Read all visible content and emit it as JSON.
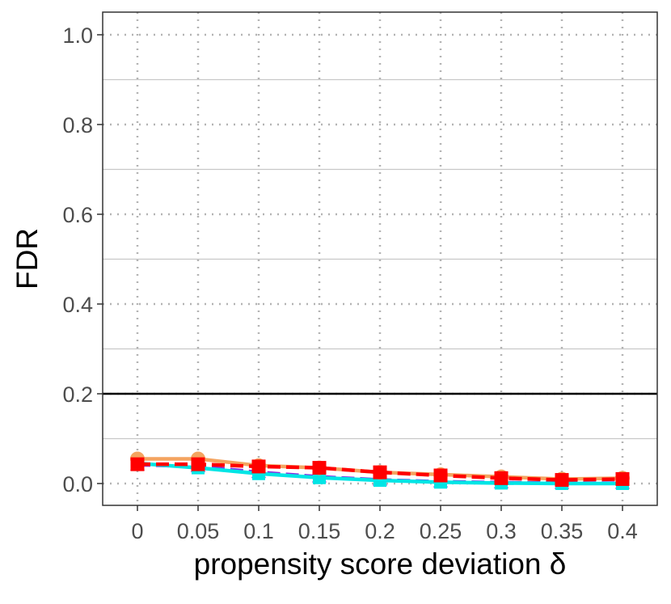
{
  "chart_data": {
    "type": "line",
    "title": "",
    "xlabel": "propensity score deviation δ",
    "ylabel": "FDR",
    "x": [
      0,
      0.05,
      0.1,
      0.15,
      0.2,
      0.25,
      0.3,
      0.35,
      0.4
    ],
    "x_tick_labels": [
      "0",
      "0.05",
      "0.1",
      "0.15",
      "0.2",
      "0.25",
      "0.3",
      "0.35",
      "0.4"
    ],
    "y_ticks": [
      0.0,
      0.2,
      0.4,
      0.6,
      0.8,
      1.0
    ],
    "y_tick_labels": [
      "0.0",
      "0.2",
      "0.4",
      "0.6",
      "0.8",
      "1.0"
    ],
    "xlim": [
      -0.02,
      0.42
    ],
    "ylim": [
      -0.05,
      1.05
    ],
    "reference_line": {
      "y": 0.2,
      "color": "#000000"
    },
    "grid": {
      "major": "dotted",
      "minor": "solid"
    },
    "legend": "none",
    "series": [
      {
        "color": "#8a2be2",
        "line": "dashed",
        "marker": "triangle",
        "values": [
          0.042,
          0.038,
          0.025,
          0.015,
          0.008,
          0.004,
          0.002,
          0.001,
          0.001
        ]
      },
      {
        "color": "#00e5e5",
        "line": "solid",
        "marker": "square",
        "values": [
          0.045,
          0.035,
          0.022,
          0.013,
          0.007,
          0.003,
          0.001,
          0.0,
          0.0
        ]
      },
      {
        "color": "#f4a460",
        "line": "solid",
        "marker": "circle",
        "values": [
          0.055,
          0.055,
          0.04,
          0.035,
          0.025,
          0.02,
          0.015,
          0.01,
          0.012
        ]
      },
      {
        "color": "#ff0000",
        "line": "dashed",
        "marker": "square",
        "values": [
          0.043,
          0.043,
          0.038,
          0.035,
          0.025,
          0.018,
          0.012,
          0.008,
          0.01
        ]
      }
    ]
  }
}
